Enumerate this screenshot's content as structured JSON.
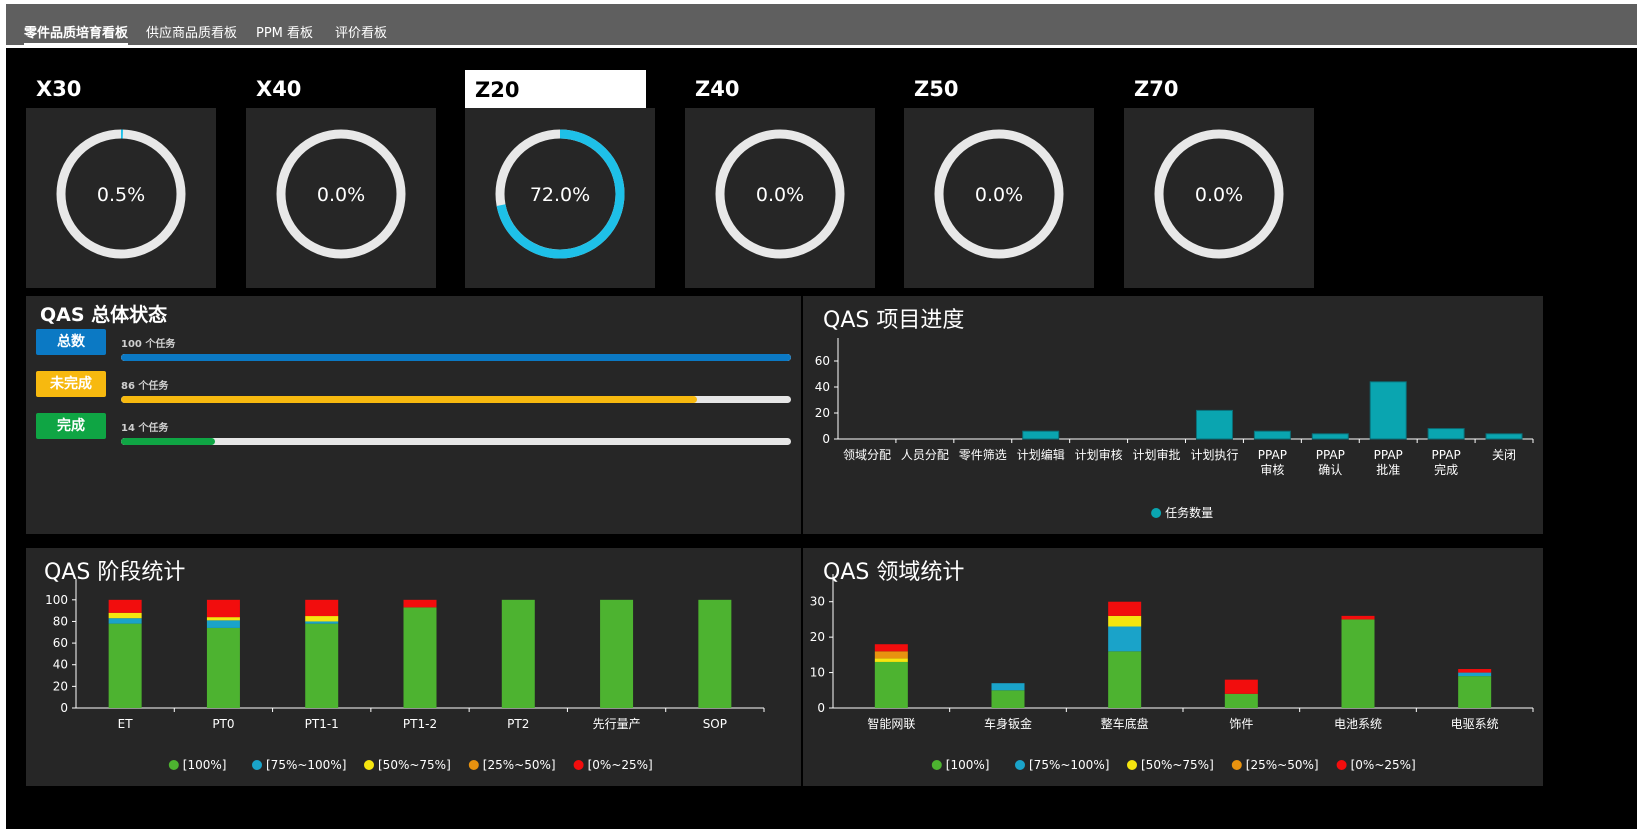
{
  "tabs": [
    {
      "label": "零件品质培育看板",
      "active": true
    },
    {
      "label": "供应商品质看板",
      "active": false
    },
    {
      "label": "PPM 看板",
      "active": false
    },
    {
      "label": "评价看板",
      "active": false
    }
  ],
  "cards": [
    {
      "name": "X30",
      "value": "0.5%",
      "fraction": 0.005,
      "active": false
    },
    {
      "name": "X40",
      "value": "0.0%",
      "fraction": 0.0,
      "active": false
    },
    {
      "name": "Z20",
      "value": "72.0%",
      "fraction": 0.72,
      "active": true
    },
    {
      "name": "Z40",
      "value": "0.0%",
      "fraction": 0.0,
      "active": false
    },
    {
      "name": "Z50",
      "value": "0.0%",
      "fraction": 0.0,
      "active": false
    },
    {
      "name": "Z70",
      "value": "0.0%",
      "fraction": 0.0,
      "active": false
    }
  ],
  "colors": {
    "ring_track": "#e8e8e8",
    "ring_fill": "#1ec0e8",
    "total": "#0b79c4",
    "incomplete": "#f7b90f",
    "complete": "#0fa544",
    "teal": "#0aa5b0",
    "s100": "#4db330",
    "s75": "#1aa3c9",
    "s50": "#f5e50f",
    "s25": "#e8920f",
    "s0": "#f20d0d"
  },
  "status_panel": {
    "title": "QAS 总体状态",
    "rows": [
      {
        "label": "总数",
        "text": "100 个任务",
        "fraction": 1.0,
        "color": "#0b79c4"
      },
      {
        "label": "未完成",
        "text": "86 个任务",
        "fraction": 0.86,
        "color": "#f7b90f"
      },
      {
        "label": "完成",
        "text": "14 个任务",
        "fraction": 0.14,
        "color": "#0fa544"
      }
    ]
  },
  "progress_panel": {
    "title": "QAS 项目进度"
  },
  "stage_panel": {
    "title": "QAS 阶段统计"
  },
  "domain_panel": {
    "title": "QAS 领域统计"
  },
  "chart_data": [
    {
      "type": "bar",
      "title": "QAS 项目进度",
      "categories": [
        "领域分配",
        "人员分配",
        "零件筛选",
        "计划编辑",
        "计划审核",
        "计划审批",
        "计划执行",
        "PPAP\n审核",
        "PPAP\n确认",
        "PPAP\n批准",
        "PPAP\n完成",
        "关闭"
      ],
      "series": [
        {
          "name": "任务数量",
          "values": [
            0,
            0,
            0,
            6,
            0,
            0,
            22,
            6,
            4,
            44,
            8,
            4
          ],
          "color": "#0aa5b0"
        }
      ],
      "ylim": [
        0,
        70
      ],
      "yticks": [
        0,
        20,
        40,
        60
      ],
      "legend_position": "bottom"
    },
    {
      "type": "bar",
      "stacked": true,
      "title": "QAS 阶段统计",
      "categories": [
        "ET",
        "PT0",
        "PT1-1",
        "PT1-2",
        "PT2",
        "先行量产",
        "SOP"
      ],
      "series": [
        {
          "name": "[100%]",
          "values": [
            78,
            74,
            78,
            93,
            100,
            100,
            100
          ],
          "color": "#4db330"
        },
        {
          "name": "[75%~100%]",
          "values": [
            5,
            7,
            2,
            0,
            0,
            0,
            0
          ],
          "color": "#1aa3c9"
        },
        {
          "name": "[50%~75%]",
          "values": [
            5,
            3,
            5,
            0,
            0,
            0,
            0
          ],
          "color": "#f5e50f"
        },
        {
          "name": "[25%~50%]",
          "values": [
            0,
            0,
            0,
            0,
            0,
            0,
            0
          ],
          "color": "#e8920f"
        },
        {
          "name": "[0%~25%]",
          "values": [
            12,
            16,
            15,
            7,
            0,
            0,
            0
          ],
          "color": "#f20d0d"
        }
      ],
      "ylim": [
        0,
        110
      ],
      "yticks": [
        0,
        20,
        40,
        60,
        80,
        100
      ],
      "legend_position": "bottom"
    },
    {
      "type": "bar",
      "stacked": true,
      "title": "QAS 领域统计",
      "categories": [
        "智能网联",
        "车身钣金",
        "整车底盘",
        "饰件",
        "电池系统",
        "电驱系统"
      ],
      "series": [
        {
          "name": "[100%]",
          "values": [
            13,
            5,
            16,
            4,
            25,
            9
          ],
          "color": "#4db330"
        },
        {
          "name": "[75%~100%]",
          "values": [
            0,
            2,
            7,
            0,
            0,
            1
          ],
          "color": "#1aa3c9"
        },
        {
          "name": "[50%~75%]",
          "values": [
            1,
            0,
            3,
            0,
            0,
            0
          ],
          "color": "#f5e50f"
        },
        {
          "name": "[25%~50%]",
          "values": [
            2,
            0,
            0,
            0,
            0,
            0
          ],
          "color": "#e8920f"
        },
        {
          "name": "[0%~25%]",
          "values": [
            2,
            0,
            4,
            4,
            1,
            1
          ],
          "color": "#f20d0d"
        }
      ],
      "ylim": [
        0,
        35
      ],
      "yticks": [
        0,
        10,
        20,
        30
      ],
      "legend_position": "bottom"
    }
  ]
}
